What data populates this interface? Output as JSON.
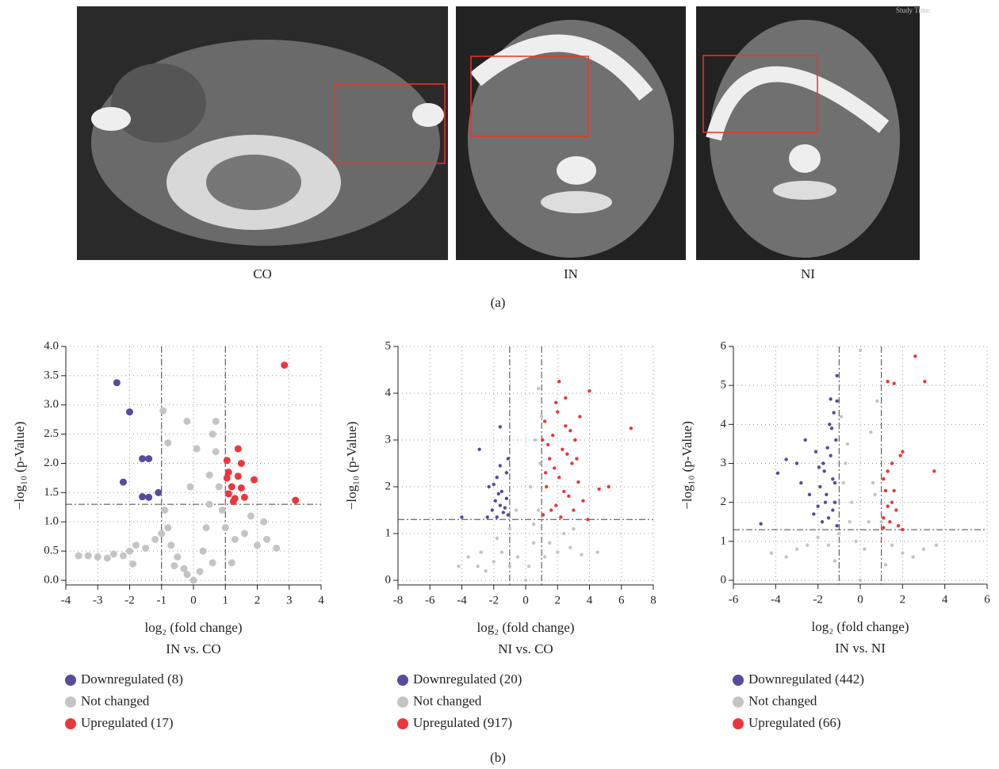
{
  "panel_a": {
    "images": [
      {
        "label": "CO"
      },
      {
        "label": "IN"
      },
      {
        "label": "NI",
        "overlay_text": "Study Time:"
      }
    ],
    "caption": "(a)"
  },
  "caption_b": "(b)",
  "chart_data": [
    {
      "type": "scatter",
      "xlabel": "log₂ (fold change)",
      "ylabel": "−log₁₀ (p-Value)",
      "subtitle": "IN vs. CO",
      "xlim": [
        -4,
        4
      ],
      "xticks": [
        -4,
        -3,
        -2,
        -1,
        0,
        1,
        2,
        3,
        4
      ],
      "ylim": [
        -0.08,
        4
      ],
      "yticks": [
        {
          "value": 0,
          "label": "0.0"
        },
        0.5,
        {
          "value": 1,
          "label": "1.0"
        },
        1.5,
        {
          "value": 2,
          "label": "2.0"
        },
        2.5,
        {
          "value": 3,
          "label": "3.0"
        },
        3.5,
        {
          "value": 4,
          "label": "4.0"
        }
      ],
      "grid": true,
      "thresholds": {
        "x": [
          -1,
          1
        ],
        "y": 1.3
      },
      "series": [
        {
          "name": "Downregulated (8)",
          "color": "#5a4a9c",
          "x": [
            -2.4,
            -2.0,
            -1.6,
            -1.4,
            -2.2,
            -1.6,
            -1.4,
            -1.1
          ],
          "values": [
            3.38,
            2.88,
            2.08,
            2.08,
            1.68,
            1.43,
            1.42,
            1.5
          ]
        },
        {
          "name": "Not changed",
          "color": "#c4c4c4",
          "x": [
            -3.6,
            -3.3,
            -3.0,
            -2.7,
            -2.5,
            -2.2,
            -2.0,
            -1.8,
            -1.5,
            -1.2,
            -1.0,
            -0.9,
            -0.8,
            -0.7,
            -0.5,
            -0.3,
            0,
            -0.2,
            0.2,
            0.3,
            0.4,
            0.5,
            0.5,
            0.6,
            0.7,
            0.8,
            0.9,
            1.0,
            1.3,
            1.6,
            2.0,
            2.3,
            2.6,
            2.2,
            1.8,
            -0.95,
            -0.2,
            0.7,
            -0.8,
            0.1,
            -0.1,
            -1.9,
            -0.6,
            0.6,
            1.2
          ],
          "values": [
            0.42,
            0.42,
            0.4,
            0.38,
            0.45,
            0.42,
            0.5,
            0.6,
            0.55,
            0.7,
            0.8,
            1.2,
            0.9,
            0.6,
            0.4,
            0.2,
            0,
            0.1,
            0.15,
            0.5,
            0.9,
            1.3,
            1.8,
            2.5,
            2.2,
            1.6,
            1.2,
            0.9,
            0.7,
            0.8,
            0.6,
            0.7,
            0.55,
            1.0,
            1.1,
            2.9,
            2.72,
            2.72,
            2.35,
            2.25,
            1.6,
            0.28,
            0.25,
            0.3,
            0.3
          ]
        },
        {
          "name": "Upregulated (17)",
          "color": "#e8383d",
          "x": [
            2.85,
            1.4,
            1.05,
            1.5,
            1.1,
            1.05,
            1.4,
            1.9,
            1.5,
            1.1,
            1.3,
            1.6,
            3.2,
            1.2,
            1.25
          ],
          "values": [
            3.68,
            2.25,
            2.05,
            2.0,
            1.85,
            1.75,
            1.78,
            1.72,
            1.58,
            1.48,
            1.4,
            1.42,
            1.37,
            1.6,
            1.35
          ]
        }
      ]
    },
    {
      "type": "scatter",
      "xlabel": "log₂ (fold change)",
      "ylabel": "−log₁₀ (p-Value)",
      "subtitle": "NI vs. CO",
      "xlim": [
        -8,
        8
      ],
      "xticks": [
        -8,
        -6,
        -4,
        -2,
        0,
        2,
        4,
        6,
        8
      ],
      "ylim": [
        -0.1,
        5
      ],
      "yticks": [
        0,
        1,
        2,
        3,
        4,
        5
      ],
      "grid": true,
      "thresholds": {
        "x": [
          -1,
          1
        ],
        "y": 1.3
      },
      "series": [
        {
          "name": "Downregulated (20)",
          "color": "#5a4a9c",
          "x": [
            -4,
            -2.9,
            -1.6,
            -1.6,
            -1.8,
            -2,
            -2.3,
            -1.5,
            -1.2,
            -1.9,
            -1.6,
            -1.3,
            -2.4,
            -1.1,
            -1.4,
            -1.7,
            -2.1,
            -1.8,
            -1.2,
            -1.1
          ],
          "values": [
            1.35,
            2.8,
            3.28,
            2.45,
            2.2,
            2.05,
            2.0,
            1.9,
            1.75,
            1.7,
            1.6,
            1.55,
            1.35,
            1.4,
            1.45,
            1.85,
            1.5,
            1.35,
            2.3,
            2.6
          ]
        },
        {
          "name": "Not changed",
          "color": "#c4c4c4",
          "x": [
            -4.2,
            -3.6,
            -3,
            -2.8,
            -2.5,
            -2,
            -1.8,
            -1.5,
            -1,
            -1,
            -0.6,
            -0.5,
            0,
            0.2,
            0.3,
            0.5,
            0.5,
            0.6,
            0.8,
            0.8,
            0.9,
            1.0,
            1.2,
            1.5,
            2,
            2.4,
            2.8,
            3,
            3.5,
            4.5
          ],
          "values": [
            0.3,
            0.5,
            0.3,
            0.6,
            0.2,
            0.4,
            0.9,
            0.6,
            0.3,
            1.1,
            1.5,
            0.5,
            0,
            0.3,
            2.0,
            0.8,
            1.2,
            3.0,
            1.5,
            4.1,
            2.5,
            3.5,
            0.5,
            0.8,
            0.6,
            1.0,
            0.7,
            1.1,
            0.55,
            0.6
          ]
        },
        {
          "name": "Upregulated (917)",
          "color": "#e8383d",
          "x": [
            1.1,
            1.3,
            1.5,
            1.7,
            1.9,
            2.1,
            2.3,
            2.5,
            2.7,
            2.9,
            3.1,
            3.3,
            3.6,
            1.2,
            1.6,
            2.0,
            2.4,
            2.8,
            3.2,
            1.4,
            1.8,
            2.2,
            2.6,
            3.0,
            1.05,
            1.25,
            1.9,
            2.5,
            3.4,
            6.6,
            4.0,
            2.1,
            5.2,
            4.6,
            3.9
          ],
          "values": [
            1.4,
            2.0,
            2.6,
            3.1,
            1.6,
            2.2,
            2.8,
            3.3,
            1.8,
            2.5,
            3.0,
            2.1,
            1.7,
            3.4,
            1.5,
            3.6,
            1.9,
            3.2,
            2.6,
            2.9,
            2.4,
            1.35,
            2.7,
            1.5,
            3.0,
            2.3,
            3.8,
            3.9,
            3.5,
            3.25,
            4.05,
            4.25,
            2.0,
            1.95,
            1.3
          ]
        }
      ]
    },
    {
      "type": "scatter",
      "xlabel": "log₂ (fold change)",
      "ylabel": "−log₁₀ (p-Value)",
      "subtitle": "IN vs. NI",
      "xlim": [
        -6,
        6
      ],
      "xticks": [
        -6,
        -4,
        -2,
        0,
        2,
        4,
        6
      ],
      "ylim": [
        -0.1,
        6
      ],
      "yticks": [
        0,
        1,
        2,
        3,
        4,
        5,
        6
      ],
      "grid": true,
      "thresholds": {
        "x": [
          -1,
          1
        ],
        "y": 1.3
      },
      "series": [
        {
          "name": "Downregulated (442)",
          "color": "#5a4a9c",
          "x": [
            -1.1,
            -1.2,
            -1.3,
            -1.4,
            -1.5,
            -1.6,
            -1.7,
            -1.8,
            -1.9,
            -2.0,
            -2.2,
            -2.4,
            -1.15,
            -1.35,
            -1.55,
            -1.75,
            -1.95,
            -1.25,
            -1.45,
            -1.65,
            -1.1,
            -1.3,
            -1.2,
            -2.6,
            -3.0,
            -3.5,
            -3.9,
            -4.7,
            -1.4,
            -1.1,
            -2.8,
            -2.1
          ],
          "values": [
            1.4,
            2.0,
            2.6,
            3.2,
            1.6,
            2.2,
            2.8,
            1.5,
            2.4,
            1.9,
            1.7,
            2.2,
            3.6,
            3.9,
            3.4,
            3.0,
            2.9,
            4.3,
            4.0,
            2.0,
            4.6,
            1.8,
            2.5,
            3.6,
            3.0,
            3.1,
            2.75,
            1.45,
            4.65,
            5.25,
            2.5,
            3.3
          ]
        },
        {
          "name": "Not changed",
          "color": "#c4c4c4",
          "x": [
            -4.2,
            -3.5,
            -3,
            -2.5,
            -2,
            -1.5,
            -1,
            -0.8,
            -0.6,
            -0.4,
            -0.2,
            0,
            0.2,
            0.4,
            0.6,
            0.8,
            1,
            1.5,
            2,
            2.5,
            3,
            3.6,
            -0.9,
            -0.7,
            -0.5,
            0.5,
            0.7,
            0,
            -1.2,
            1.2
          ],
          "values": [
            0.7,
            0.6,
            0.8,
            0.9,
            1.1,
            0.9,
            1.2,
            2.5,
            3.5,
            2.0,
            1.0,
            0,
            0.8,
            1.5,
            2.5,
            4.6,
            1.5,
            0.9,
            0.7,
            0.6,
            0.8,
            0.9,
            4.2,
            3.0,
            1.5,
            3.8,
            2.2,
            5.9,
            0.5,
            0.4
          ]
        },
        {
          "name": "Upregulated (66)",
          "color": "#e8383d",
          "x": [
            2.6,
            3.05,
            1.3,
            1.6,
            3.5,
            2.0,
            1.9,
            1.5,
            1.3,
            1.1,
            1.2,
            1.5,
            1.7,
            1.1,
            1.4,
            1.8,
            1.1,
            2.0,
            1.3,
            1.6
          ],
          "values": [
            5.75,
            5.1,
            5.1,
            5.05,
            2.8,
            3.3,
            3.2,
            3.0,
            2.8,
            2.6,
            2.3,
            2.0,
            1.8,
            1.6,
            1.5,
            1.4,
            1.35,
            1.3,
            1.9,
            2.3
          ]
        }
      ]
    }
  ]
}
